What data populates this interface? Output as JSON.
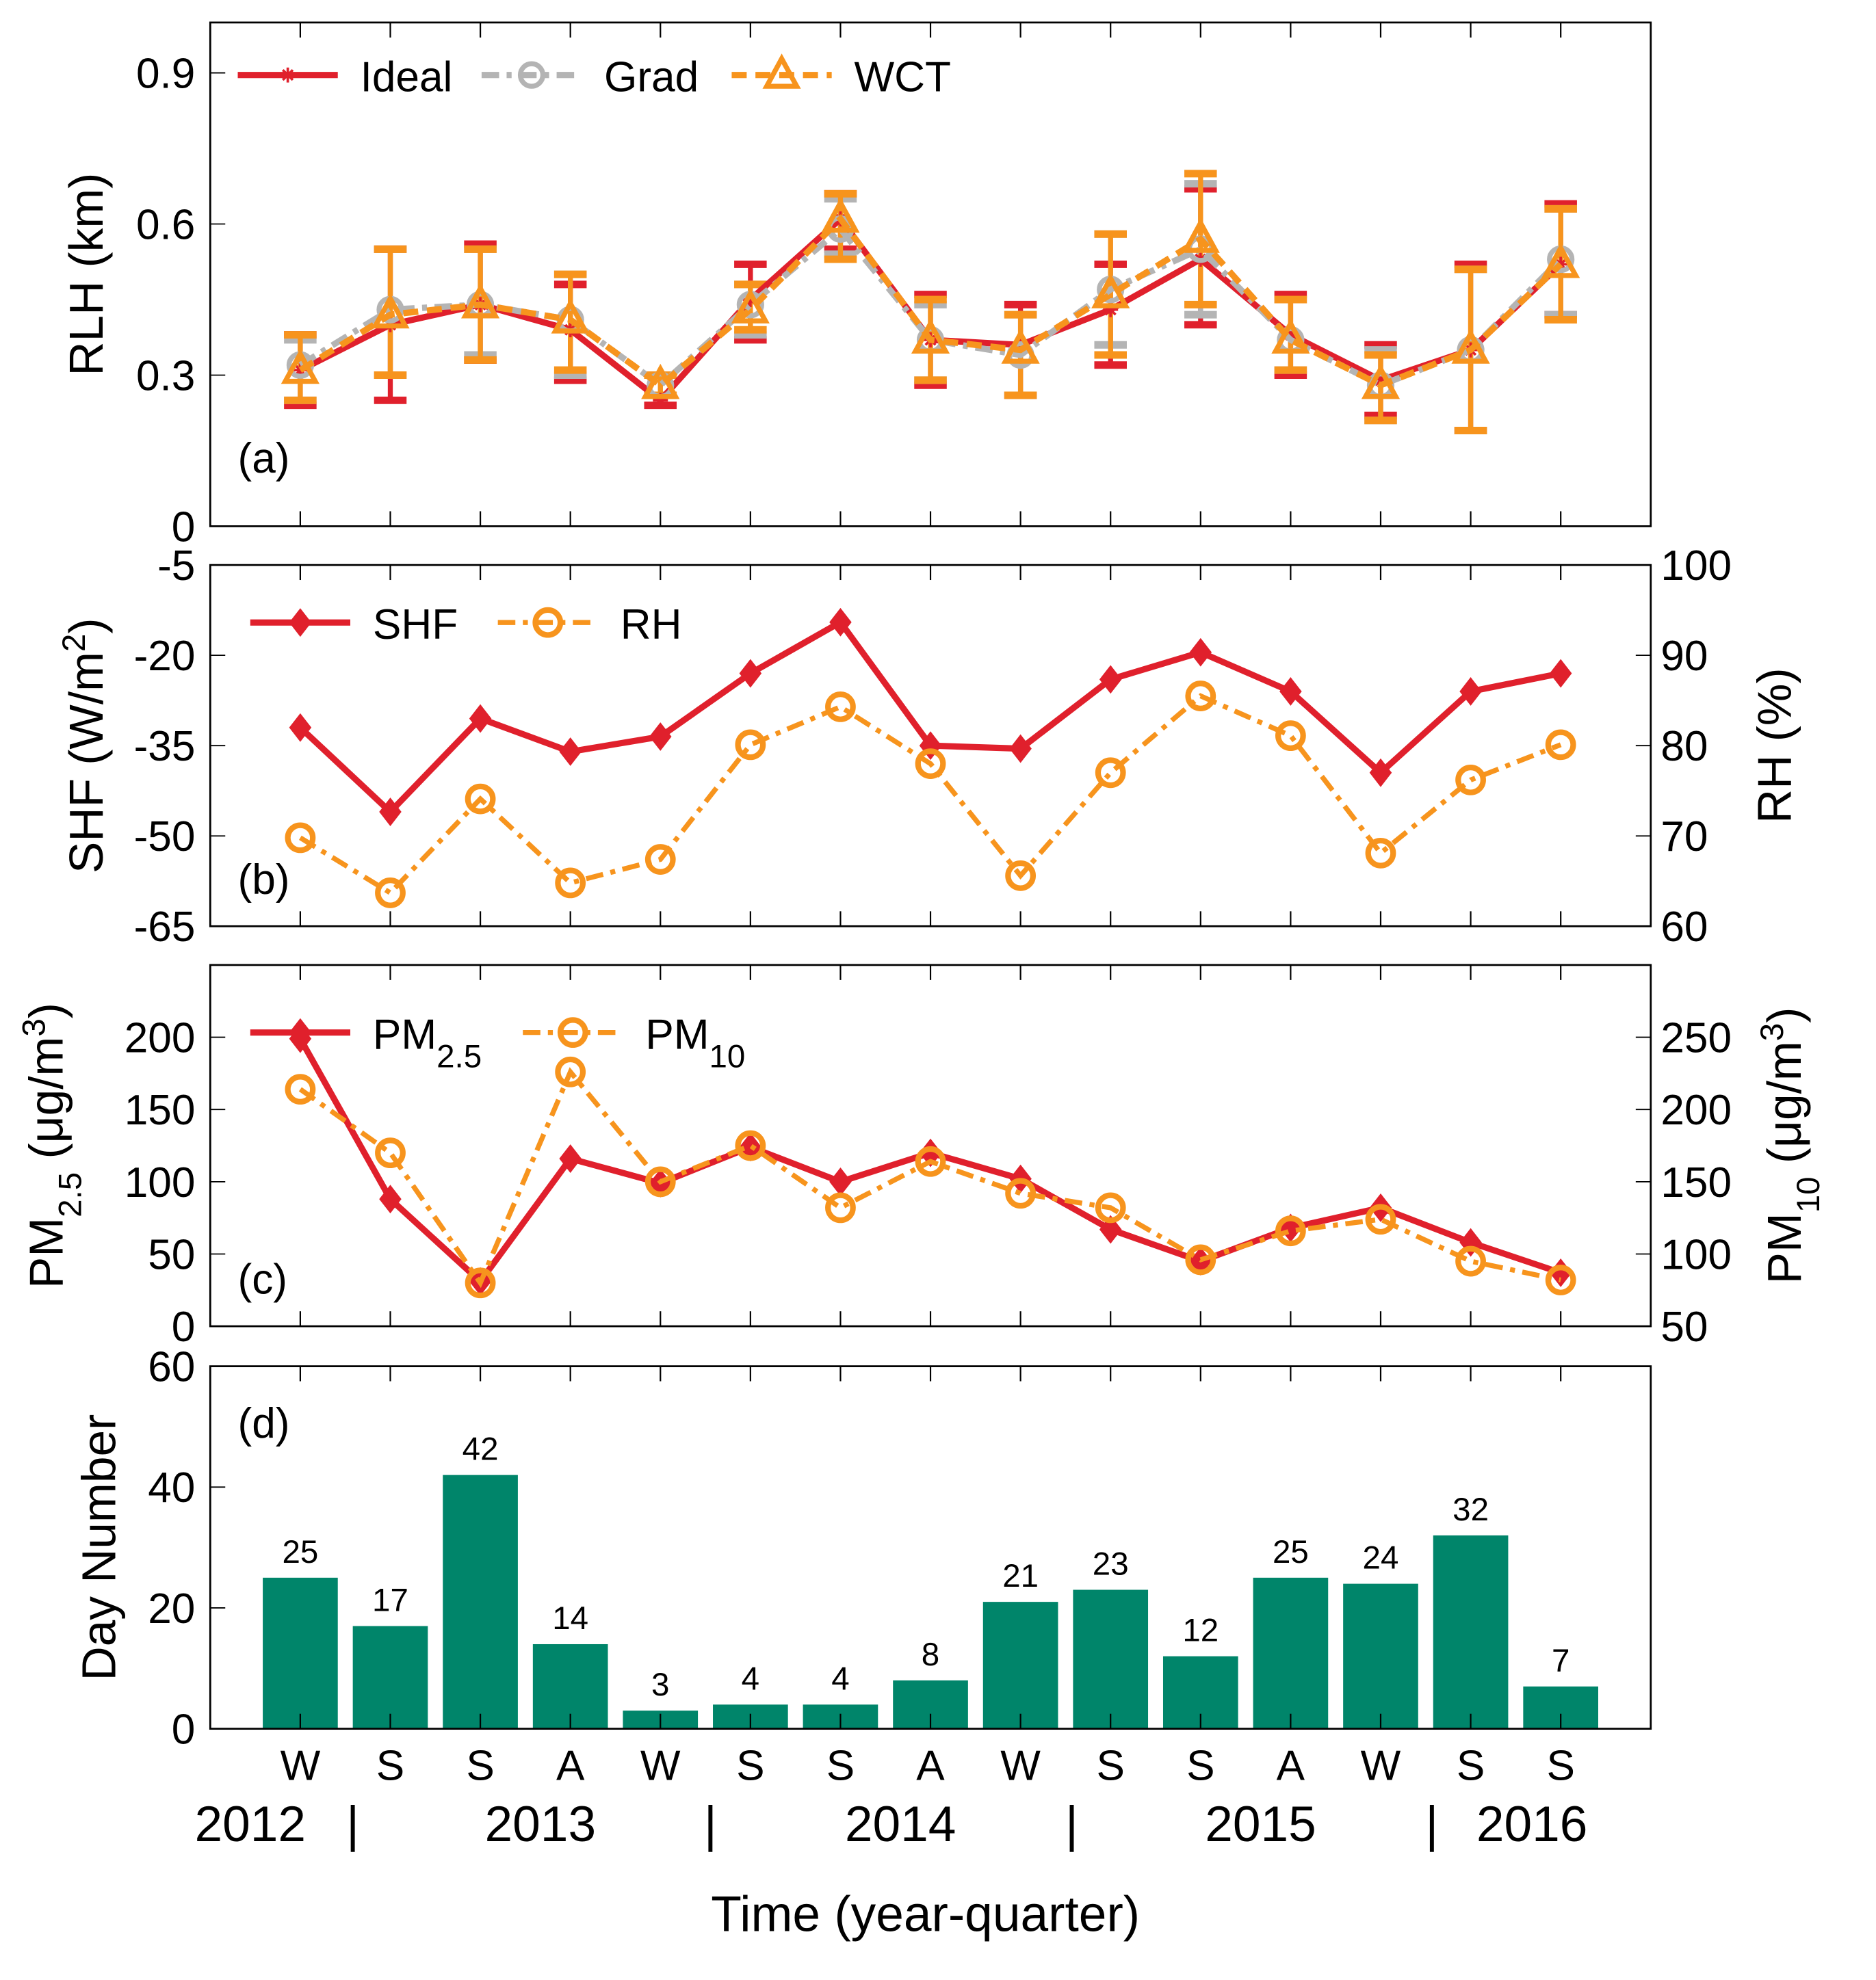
{
  "chart_data": [
    {
      "panel": "(a)",
      "type": "line",
      "ylabel": "RLH (km)",
      "ylim": [
        0,
        1
      ],
      "yticks": [
        "0",
        "0.3",
        "0.6",
        "0.9"
      ],
      "yticks_values": [
        0,
        0.3,
        0.6,
        0.9
      ],
      "x": [
        1,
        2,
        3,
        4,
        5,
        6,
        7,
        8,
        9,
        10,
        11,
        12,
        13,
        14,
        15
      ],
      "legend": "top-left",
      "series": [
        {
          "name": "Ideal",
          "color": "#e0202c",
          "values": [
            0.31,
            0.4,
            0.44,
            0.39,
            0.25,
            0.45,
            0.61,
            0.37,
            0.36,
            0.43,
            0.53,
            0.38,
            0.29,
            0.35,
            0.52
          ],
          "err": [
            [
              0.24,
              0.38
            ],
            [
              0.25,
              0.55
            ],
            [
              0.33,
              0.56
            ],
            [
              0.29,
              0.48
            ],
            [
              0.24,
              0.26
            ],
            [
              0.37,
              0.52
            ],
            [
              0.55,
              0.66
            ],
            [
              0.28,
              0.46
            ],
            [
              0.26,
              0.44
            ],
            [
              0.32,
              0.52
            ],
            [
              0.4,
              0.67
            ],
            [
              0.3,
              0.46
            ],
            [
              0.22,
              0.36
            ],
            [
              0.19,
              0.52
            ],
            [
              0.42,
              0.64
            ]
          ]
        },
        {
          "name": "Grad",
          "color": "#b4b4b4",
          "values": [
            0.32,
            0.43,
            0.44,
            0.41,
            0.28,
            0.44,
            0.59,
            0.37,
            0.34,
            0.47,
            0.55,
            0.37,
            0.28,
            0.35,
            0.53
          ],
          "err": [
            [
              0.25,
              0.37
            ],
            [
              0.3,
              0.55
            ],
            [
              0.34,
              0.55
            ],
            [
              0.3,
              0.5
            ],
            [
              0.26,
              0.3
            ],
            [
              0.38,
              0.48
            ],
            [
              0.54,
              0.65
            ],
            [
              0.29,
              0.44
            ],
            [
              0.26,
              0.42
            ],
            [
              0.36,
              0.58
            ],
            [
              0.42,
              0.68
            ],
            [
              0.31,
              0.45
            ],
            [
              0.21,
              0.35
            ],
            [
              0.19,
              0.51
            ],
            [
              0.42,
              0.63
            ]
          ]
        },
        {
          "name": "WCT",
          "color": "#f7941d",
          "values": [
            0.31,
            0.42,
            0.44,
            0.41,
            0.28,
            0.43,
            0.61,
            0.37,
            0.35,
            0.46,
            0.57,
            0.37,
            0.28,
            0.35,
            0.52
          ],
          "err": [
            [
              0.25,
              0.38
            ],
            [
              0.3,
              0.55
            ],
            [
              0.33,
              0.55
            ],
            [
              0.31,
              0.5
            ],
            [
              0.26,
              0.3
            ],
            [
              0.39,
              0.48
            ],
            [
              0.53,
              0.66
            ],
            [
              0.29,
              0.45
            ],
            [
              0.26,
              0.42
            ],
            [
              0.34,
              0.58
            ],
            [
              0.44,
              0.7
            ],
            [
              0.31,
              0.45
            ],
            [
              0.21,
              0.34
            ],
            [
              0.19,
              0.51
            ],
            [
              0.41,
              0.63
            ]
          ]
        }
      ]
    },
    {
      "panel": "(b)",
      "type": "line",
      "ylabel": "SHF (W/m",
      "ylabel_sup": "2",
      "ylabel_end": ")",
      "ylim": [
        -65,
        -5
      ],
      "yticks": [
        "-65",
        "-50",
        "-35",
        "-20",
        "-5"
      ],
      "yticks_values": [
        -65,
        -50,
        -35,
        -20,
        -5
      ],
      "y2label": "RH (%)",
      "y2lim": [
        60,
        100
      ],
      "y2ticks": [
        "60",
        "70",
        "80",
        "90",
        "100"
      ],
      "y2ticks_values": [
        60,
        70,
        80,
        90,
        100
      ],
      "x": [
        1,
        2,
        3,
        4,
        5,
        6,
        7,
        8,
        9,
        10,
        11,
        12,
        13,
        14,
        15
      ],
      "legend": "top-left",
      "series": [
        {
          "name": "SHF",
          "axis": "left",
          "color": "#e0202c",
          "values": [
            -32,
            -46,
            -30.5,
            -36,
            -33.5,
            -23,
            -14.5,
            -35,
            -35.5,
            -24,
            -19.5,
            -26,
            -39.5,
            -26,
            -23
          ]
        },
        {
          "name": "RH",
          "axis": "right",
          "color": "#f7941d",
          "values": [
            69.8,
            63.7,
            74.1,
            64.8,
            67.4,
            80.1,
            84.3,
            78.0,
            65.6,
            77.0,
            85.5,
            81.1,
            68.1,
            76.2,
            80.1
          ]
        }
      ]
    },
    {
      "panel": "(c)",
      "type": "line",
      "ylabel": "PM",
      "ylabel_sub": "2.5",
      "ylabel_end": " (μg/m",
      "ylabel_sup": "3",
      "ylim": [
        0,
        250
      ],
      "yticks": [
        "0",
        "50",
        "100",
        "150",
        "200"
      ],
      "yticks_values": [
        0,
        50,
        100,
        150,
        200
      ],
      "y2label": "PM",
      "y2label_sub": "10",
      "y2label_end": " (μg/m",
      "y2label_sup": "3",
      "y2lim": [
        50,
        300
      ],
      "y2ticks": [
        "50",
        "100",
        "150",
        "200",
        "250"
      ],
      "y2ticks_values": [
        50,
        100,
        150,
        200,
        250
      ],
      "x": [
        1,
        2,
        3,
        4,
        5,
        6,
        7,
        8,
        9,
        10,
        11,
        12,
        13,
        14,
        15
      ],
      "legend": "top-left",
      "series": [
        {
          "name": "PM",
          "sub": "2.5",
          "axis": "left",
          "color": "#e0202c",
          "values": [
            199,
            88,
            31,
            116,
            99,
            124,
            100,
            120,
            102,
            67,
            45,
            68,
            82,
            58,
            37
          ]
        },
        {
          "name": "PM",
          "sub": "10",
          "axis": "right",
          "color": "#f7941d",
          "values": [
            214,
            170,
            80,
            226,
            150,
            175,
            132,
            164,
            142,
            132,
            96,
            116,
            124,
            95,
            82
          ]
        }
      ]
    },
    {
      "panel": "(d)",
      "type": "bar",
      "ylabel": "Day Number",
      "ylim": [
        0,
        60
      ],
      "yticks": [
        "0",
        "20",
        "40",
        "60"
      ],
      "yticks_values": [
        0,
        20,
        40,
        60
      ],
      "color": "#00856a",
      "categories": [
        "W",
        "S",
        "S",
        "A",
        "W",
        "S",
        "S",
        "A",
        "W",
        "S",
        "S",
        "A",
        "W",
        "S",
        "S"
      ],
      "values": [
        25,
        17,
        42,
        14,
        3,
        4,
        4,
        8,
        21,
        23,
        12,
        25,
        24,
        32,
        7
      ],
      "labels": [
        "25",
        "17",
        "42",
        "14",
        "3",
        "4",
        "4",
        "8",
        "21",
        "23",
        "12",
        "25",
        "24",
        "32",
        "7"
      ],
      "xlabel": "Time (year-quarter)",
      "years": [
        "2012",
        "|",
        "2013",
        "|",
        "2014",
        "|",
        "2015",
        "|",
        "2016"
      ]
    }
  ]
}
